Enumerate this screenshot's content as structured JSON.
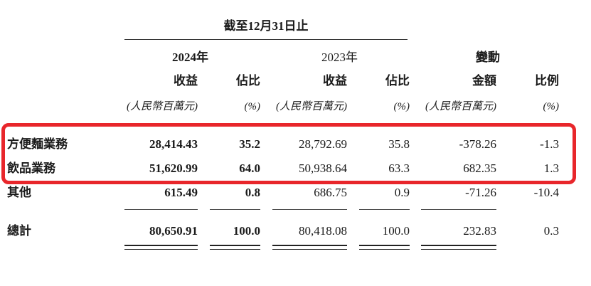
{
  "table": {
    "period_title": "截至12月31日止",
    "group_headers": [
      "2024年",
      "2023年",
      "變動"
    ],
    "column_headers": [
      "收益",
      "佔比",
      "收益",
      "佔比",
      "金額",
      "比例"
    ],
    "unit_headers": [
      "(人民幣百萬元)",
      "(%)",
      "(人民幣百萬元)",
      "(%)",
      "(人民幣百萬元)",
      "(%)"
    ],
    "rows": [
      {
        "label": "方便麵業務",
        "values": [
          "28,414.43",
          "35.2",
          "28,792.69",
          "35.8",
          "-378.26",
          "-1.3"
        ],
        "highlighted": true
      },
      {
        "label": "飲品業務",
        "values": [
          "51,620.99",
          "64.0",
          "50,938.64",
          "63.3",
          "682.35",
          "1.3"
        ],
        "highlighted": true
      },
      {
        "label": "其他",
        "values": [
          "615.49",
          "0.8",
          "686.75",
          "0.9",
          "-71.26",
          "-10.4"
        ],
        "highlighted": false
      }
    ],
    "total_row": {
      "label": "總計",
      "values": [
        "80,650.91",
        "100.0",
        "80,418.08",
        "100.0",
        "232.83",
        "0.3"
      ]
    },
    "highlight_color": "#e8262b"
  }
}
